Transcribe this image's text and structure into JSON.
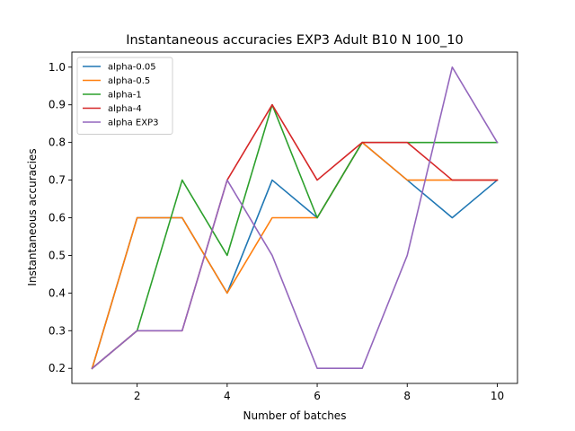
{
  "chart_data": {
    "type": "line",
    "title": "Instantaneous accuracies EXP3 Adult B10 N 100_10",
    "xlabel": "Number of batches",
    "ylabel": "Instantaneous accuracies",
    "x": [
      1,
      2,
      3,
      4,
      5,
      6,
      7,
      8,
      9,
      10
    ],
    "xlim": [
      0.55,
      10.45
    ],
    "ylim": [
      0.16,
      1.04
    ],
    "xticks": [
      2,
      4,
      6,
      8,
      10
    ],
    "yticks": [
      0.2,
      0.3,
      0.4,
      0.5,
      0.6,
      0.7,
      0.8,
      0.9,
      1.0
    ],
    "xtick_labels": [
      "2",
      "4",
      "6",
      "8",
      "10"
    ],
    "ytick_labels": [
      "0.2",
      "0.3",
      "0.4",
      "0.5",
      "0.6",
      "0.7",
      "0.8",
      "0.9",
      "1.0"
    ],
    "grid": false,
    "legend_position": "top-left",
    "series": [
      {
        "name": "alpha-0.05",
        "color": "#1f77b4",
        "values": [
          0.2,
          0.6,
          0.6,
          0.4,
          0.7,
          0.6,
          0.8,
          0.7,
          0.6,
          0.7
        ]
      },
      {
        "name": "alpha-0.5",
        "color": "#ff7f0e",
        "values": [
          0.2,
          0.6,
          0.6,
          0.4,
          0.6,
          0.6,
          0.8,
          0.7,
          0.7,
          0.7
        ]
      },
      {
        "name": "alpha-1",
        "color": "#2ca02c",
        "values": [
          0.2,
          0.3,
          0.7,
          0.5,
          0.9,
          0.6,
          0.8,
          0.8,
          0.8,
          0.8
        ]
      },
      {
        "name": "alpha-4",
        "color": "#d62728",
        "values": [
          0.2,
          0.3,
          0.3,
          0.7,
          0.9,
          0.7,
          0.8,
          0.8,
          0.7,
          0.7
        ]
      },
      {
        "name": "alpha EXP3",
        "color": "#9467bd",
        "values": [
          0.2,
          0.3,
          0.3,
          0.7,
          0.5,
          0.2,
          0.2,
          0.5,
          1.0,
          0.8
        ]
      }
    ]
  }
}
